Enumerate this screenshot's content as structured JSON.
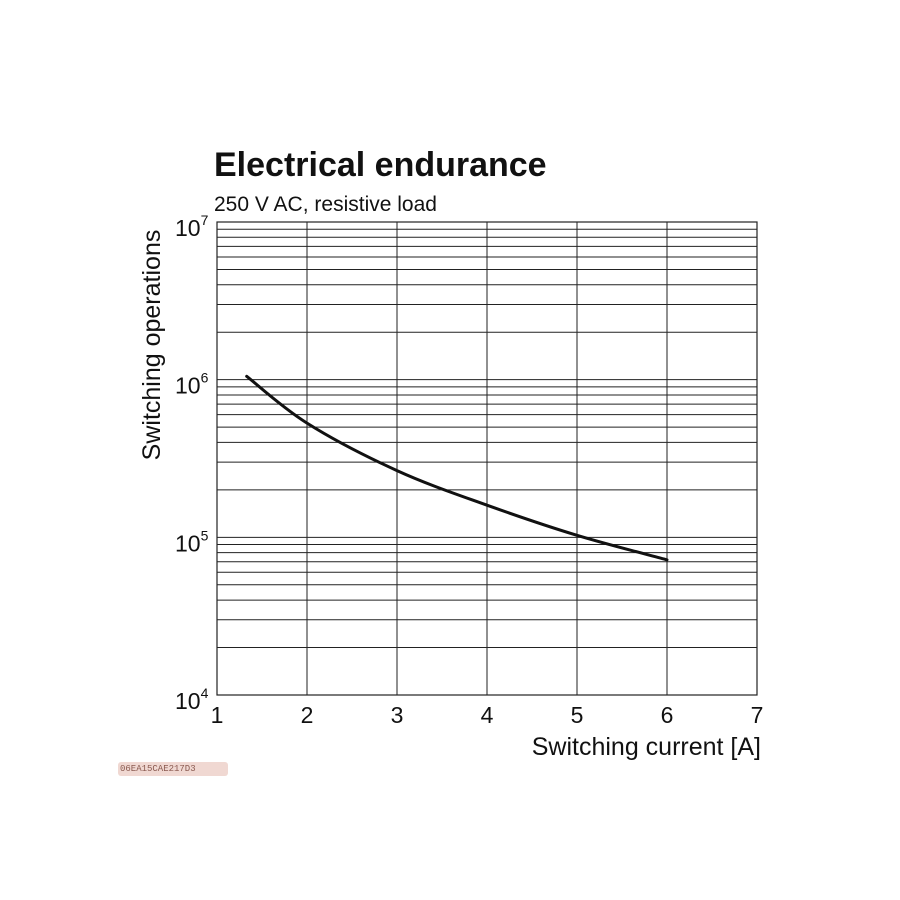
{
  "chart_data": {
    "type": "line",
    "title": "Electrical endurance",
    "subtitle": "250 V AC, resistive load",
    "xlabel": "Switching current [A]",
    "ylabel": "Switching operations",
    "xlim": [
      1,
      7
    ],
    "ylim": [
      10000,
      10000000
    ],
    "yscale": "log",
    "grid": true,
    "x_ticks": [
      "1",
      "2",
      "3",
      "4",
      "5",
      "6",
      "7"
    ],
    "y_ticks": [
      {
        "base": "10",
        "exp": "4",
        "value": 10000
      },
      {
        "base": "10",
        "exp": "5",
        "value": 100000
      },
      {
        "base": "10",
        "exp": "6",
        "value": 1000000
      },
      {
        "base": "10",
        "exp": "7",
        "value": 10000000
      }
    ],
    "series": [
      {
        "x": [
          1.33,
          2.0,
          3.0,
          4.0,
          5.0,
          6.0
        ],
        "y": [
          1050000,
          530000,
          265000,
          160000,
          103000,
          72000
        ]
      }
    ]
  },
  "footer": {
    "stamp_text": "06EA15CAE217D3"
  }
}
